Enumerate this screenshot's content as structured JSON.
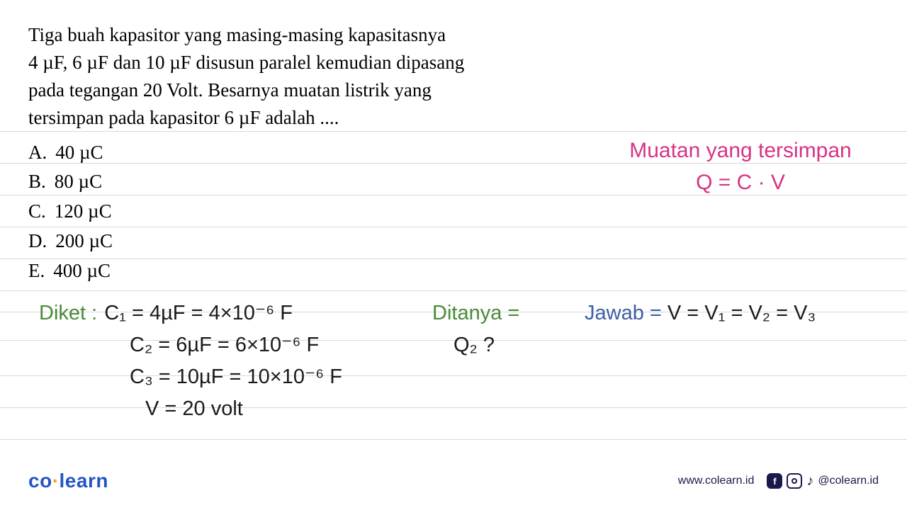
{
  "question": {
    "text_lines": [
      "Tiga buah kapasitor yang masing-masing kapasitasnya",
      "4 µF, 6 µF dan 10 µF disusun paralel kemudian  dipasang",
      "pada tegangan 20 Volt. Besarnya muatan listrik yang",
      "tersimpan pada kapasitor 6 µF adalah ...."
    ],
    "options": {
      "A": "40 µC",
      "B": "80 µC",
      "C": "120 µC",
      "D": "200 µC",
      "E": "400 µC"
    }
  },
  "annotation_right": {
    "line1": "Muatan yang tersimpan",
    "line2": "Q = C · V",
    "color": "#d63384",
    "fontsize": 30
  },
  "handwriting": {
    "diket_label": "Diket :",
    "diket_lines": [
      "C₁ = 4µF = 4×10⁻⁶ F",
      "C₂ = 6µF = 6×10⁻⁶ F",
      "C₃ = 10µF = 10×10⁻⁶ F",
      "V = 20 volt"
    ],
    "ditanya_label": "Ditanya =",
    "ditanya_value": "Q₂ ?",
    "jawab_label": "Jawab =",
    "jawab_value": "V = V₁ = V₂ = V₃",
    "label_green_color": "#4a8a3a",
    "label_blue_color": "#3c5fa3",
    "text_color": "#1a1a1a"
  },
  "ruled": {
    "line_color": "#d9d9d9",
    "line_positions": [
      5,
      50,
      95,
      140,
      185,
      230,
      260,
      300,
      350,
      395,
      440
    ]
  },
  "footer": {
    "logo_prefix": "co",
    "logo_dot": "·",
    "logo_suffix": "learn",
    "logo_color": "#2455c4",
    "dot_color": "#ff9b21",
    "url": "www.colearn.id",
    "handle": "@colearn.id"
  },
  "styling": {
    "background": "#ffffff",
    "question_font_family": "Georgia, Times New Roman, serif",
    "question_fontsize": 27,
    "handwriting_font_family": "Comic Sans MS, cursive",
    "handwriting_fontsize": 29
  }
}
